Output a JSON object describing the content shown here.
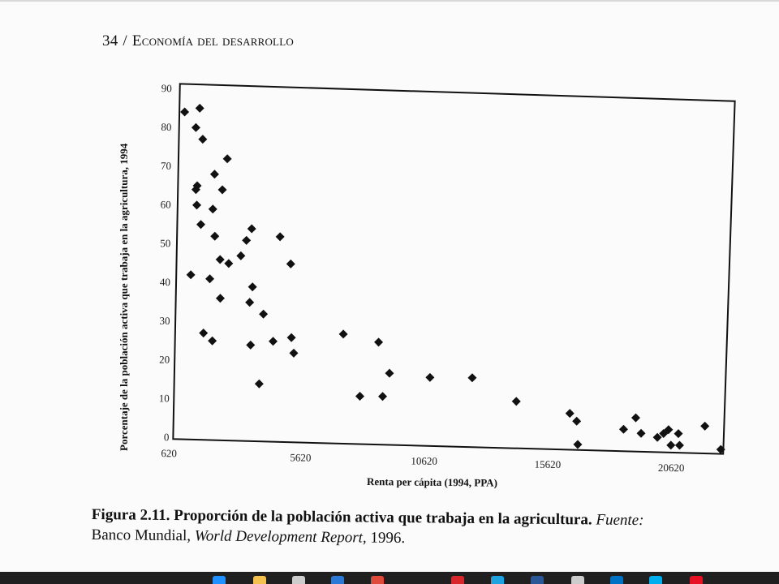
{
  "header": {
    "page_number": "34",
    "separator": "/",
    "book_title": "Economía del desarrollo"
  },
  "chart_data": {
    "type": "scatter",
    "xlabel": "Renta per cápita (1994, PPA)",
    "ylabel": "Porcentaje de la población activa que trabaja en la agricultura, 1994",
    "x_ticks": [
      "620",
      "5620",
      "10620",
      "15620",
      "20620"
    ],
    "y_ticks": [
      "0",
      "10",
      "20",
      "30",
      "40",
      "50",
      "60",
      "70",
      "80",
      "90"
    ],
    "xlim": [
      620,
      22620
    ],
    "ylim": [
      0,
      90
    ],
    "grid": false,
    "legend": "none",
    "marker": "diamond",
    "color": "#111111",
    "points": [
      [
        820,
        84
      ],
      [
        1430,
        85
      ],
      [
        1280,
        80
      ],
      [
        1560,
        77
      ],
      [
        1350,
        65
      ],
      [
        1300,
        64
      ],
      [
        1340,
        60
      ],
      [
        1510,
        55
      ],
      [
        2050,
        68
      ],
      [
        2560,
        72
      ],
      [
        2370,
        64
      ],
      [
        1990,
        59
      ],
      [
        2080,
        52
      ],
      [
        2300,
        46
      ],
      [
        2650,
        45
      ],
      [
        3140,
        47
      ],
      [
        3360,
        51
      ],
      [
        3570,
        54
      ],
      [
        4720,
        52
      ],
      [
        5160,
        45
      ],
      [
        1120,
        42
      ],
      [
        1890,
        41
      ],
      [
        3620,
        39
      ],
      [
        2320,
        36
      ],
      [
        3510,
        35
      ],
      [
        4070,
        32
      ],
      [
        1650,
        27
      ],
      [
        2010,
        25
      ],
      [
        3560,
        24
      ],
      [
        4470,
        25
      ],
      [
        5210,
        26
      ],
      [
        5310,
        22
      ],
      [
        3920,
        14
      ],
      [
        7310,
        27
      ],
      [
        8740,
        25
      ],
      [
        9190,
        17
      ],
      [
        8000,
        11
      ],
      [
        8920,
        11
      ],
      [
        10830,
        16
      ],
      [
        12540,
        16
      ],
      [
        14330,
        10
      ],
      [
        16500,
        7
      ],
      [
        16780,
        5
      ],
      [
        16830,
        -1
      ],
      [
        18680,
        3
      ],
      [
        19170,
        6
      ],
      [
        19390,
        2
      ],
      [
        20050,
        1
      ],
      [
        20300,
        2
      ],
      [
        20500,
        3
      ],
      [
        20900,
        2
      ],
      [
        20600,
        -1
      ],
      [
        20950,
        -1
      ],
      [
        21970,
        4
      ],
      [
        22620,
        -2
      ]
    ]
  },
  "caption": {
    "label": "Figura 2.11.",
    "title": "Proporción de la población activa que trabaja en la agricultura.",
    "source_label": "Fuente:",
    "source_org": "Banco Mundial,",
    "source_report": "World Development Report,",
    "source_year": "1996."
  },
  "taskbar": {
    "icons": [
      "edge-icon",
      "file-explorer-icon",
      "store-icon",
      "mail-icon",
      "chrome-icon",
      "acrobat-icon",
      "ie-icon",
      "word-icon",
      "clock-icon",
      "outlook-icon",
      "skype-icon",
      "app-icon"
    ],
    "colors": [
      "#1e90ff",
      "#f2c14e",
      "#cccccc",
      "#2b78d6",
      "#e04a3a",
      "#d9262b",
      "#1fa2e0",
      "#2b5797",
      "#cccccc",
      "#0072c6",
      "#00aff0",
      "#e81123"
    ]
  }
}
